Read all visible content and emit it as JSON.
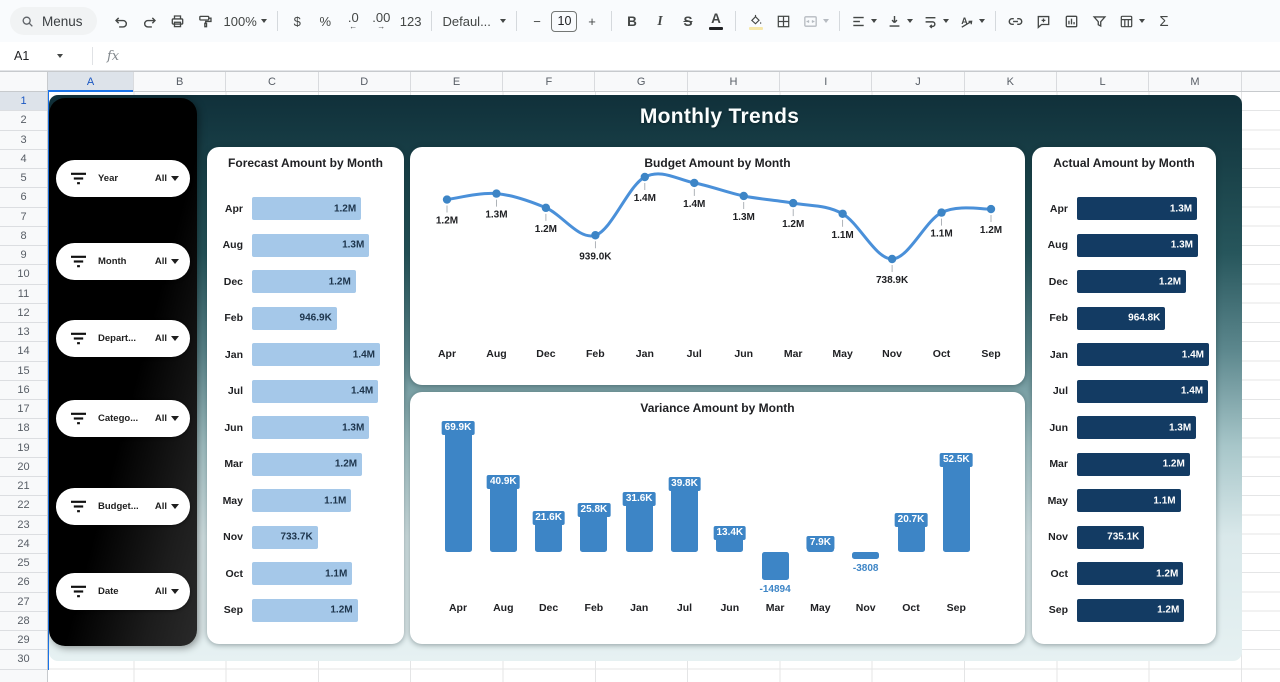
{
  "toolbar": {
    "menus_label": "Menus",
    "zoom_value": "100%",
    "currency": "$",
    "percent": "%",
    "decimal_decrease": ".0",
    "decimal_decrease_arrow": "←",
    "decimal_increase": ".00",
    "decimal_increase_arrow": "→",
    "number_format": "123",
    "font_name": "Defaul...",
    "font_size": "10",
    "minus": "−",
    "plus": "+",
    "bold": "B",
    "italic": "I",
    "strikethrough": "S",
    "text_color": "A",
    "functions": "Σ"
  },
  "formula_bar": {
    "cell_reference": "A1",
    "fx_label": "fx"
  },
  "grid": {
    "columns": [
      "A",
      "B",
      "C",
      "D",
      "E",
      "F",
      "G",
      "H",
      "I",
      "J",
      "K",
      "L",
      "M"
    ],
    "rows": [
      1,
      2,
      3,
      4,
      5,
      6,
      7,
      8,
      9,
      10,
      11,
      12,
      13,
      14,
      15,
      16,
      17,
      18,
      19,
      20,
      21,
      22,
      23,
      24,
      25,
      26,
      27,
      28,
      29,
      30
    ]
  },
  "dashboard": {
    "title": "Monthly Trends",
    "filters": [
      {
        "label": "Year",
        "value": "All"
      },
      {
        "label": "Month",
        "value": "All"
      },
      {
        "label": "Depart...",
        "value": "All"
      },
      {
        "label": "Catego...",
        "value": "All"
      },
      {
        "label": "Budget...",
        "value": "All"
      },
      {
        "label": "Date",
        "value": "All"
      }
    ]
  },
  "colors": {
    "accent_blue": "#1a73e8",
    "bar_light_blue": "#a5c8e9",
    "bar_navy": "#133b63",
    "chart_blue": "#3d85c6",
    "line_blue": "#4a90d9",
    "forecast_value_text": "#1d3count554b",
    "teal_dark": "#10303a",
    "teal_light": "#e6f1f2",
    "panel_black": "#000000",
    "card_bg": "#ffffff"
  },
  "chart_data": [
    {
      "id": "forecast",
      "type": "bar",
      "orientation": "horizontal",
      "title": "Forecast Amount by Month",
      "categories": [
        "Apr",
        "Aug",
        "Dec",
        "Feb",
        "Jan",
        "Jul",
        "Jun",
        "Mar",
        "May",
        "Nov",
        "Oct",
        "Sep"
      ],
      "values": [
        1220,
        1310,
        1160,
        946.9,
        1430,
        1410,
        1310,
        1230,
        1110,
        733.7,
        1120,
        1180
      ],
      "unit": "K",
      "labels": [
        "1.2M",
        "1.3M",
        "1.2M",
        "946.9K",
        "1.4M",
        "1.4M",
        "1.3M",
        "1.2M",
        "1.1M",
        "733.7K",
        "1.1M",
        "1.2M"
      ]
    },
    {
      "id": "budget",
      "type": "line",
      "title": "Budget Amount by Month",
      "categories": [
        "Apr",
        "Aug",
        "Dec",
        "Feb",
        "Jan",
        "Jul",
        "Jun",
        "Mar",
        "May",
        "Nov",
        "Oct",
        "Sep"
      ],
      "values": [
        1240,
        1290,
        1170,
        939.0,
        1430,
        1380,
        1270,
        1210,
        1120,
        738.9,
        1130,
        1160
      ],
      "unit": "K",
      "labels": [
        "1.2M",
        "1.3M",
        "1.2M",
        "939.0K",
        "1.4M",
        "1.4M",
        "1.3M",
        "1.2M",
        "1.1M",
        "738.9K",
        "1.1M",
        "1.2M"
      ]
    },
    {
      "id": "variance",
      "type": "bar",
      "orientation": "vertical",
      "title": "Variance Amount by Month",
      "categories": [
        "Apr",
        "Aug",
        "Dec",
        "Feb",
        "Jan",
        "Jul",
        "Jun",
        "Mar",
        "May",
        "Nov",
        "Oct",
        "Sep"
      ],
      "values": [
        69.9,
        40.9,
        21.6,
        25.8,
        31.6,
        39.8,
        13.4,
        -14.894,
        7.9,
        -3.808,
        20.7,
        52.5
      ],
      "unit": "K",
      "labels": [
        "69.9K",
        "40.9K",
        "21.6K",
        "25.8K",
        "31.6K",
        "39.8K",
        "13.4K",
        "-14894",
        "7.9K",
        "-3808",
        "20.7K",
        "52.5K"
      ]
    },
    {
      "id": "actual",
      "type": "bar",
      "orientation": "horizontal",
      "title": "Actual Amount by Month",
      "categories": [
        "Apr",
        "Aug",
        "Dec",
        "Feb",
        "Jan",
        "Jul",
        "Jun",
        "Mar",
        "May",
        "Nov",
        "Oct",
        "Sep"
      ],
      "values": [
        1310,
        1320,
        1190,
        964.8,
        1440,
        1430,
        1300,
        1230,
        1130,
        735.1,
        1160,
        1170
      ],
      "unit": "K",
      "labels": [
        "1.3M",
        "1.3M",
        "1.2M",
        "964.8K",
        "1.4M",
        "1.4M",
        "1.3M",
        "1.2M",
        "1.1M",
        "735.1K",
        "1.2M",
        "1.2M"
      ]
    }
  ]
}
